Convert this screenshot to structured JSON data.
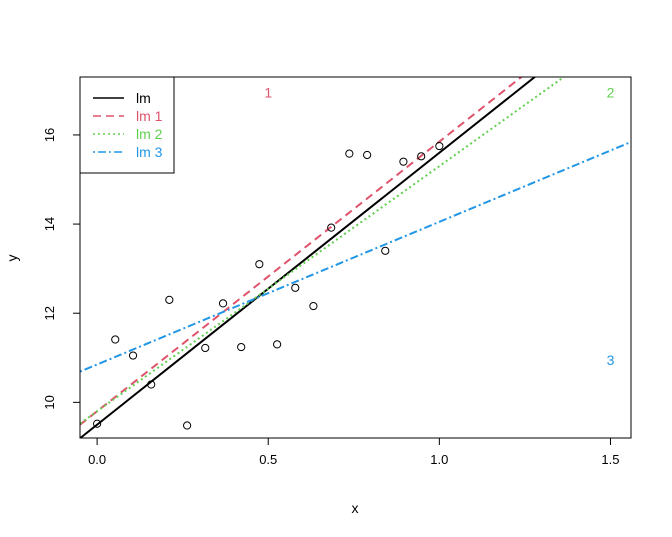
{
  "chart_data": {
    "type": "scatter",
    "title": "",
    "xlabel": "x",
    "ylabel": "y",
    "xlim": [
      -0.05,
      1.56
    ],
    "ylim": [
      9.2,
      17.3
    ],
    "x_ticks": [
      0.0,
      0.5,
      1.0,
      1.5
    ],
    "x_tick_labels": [
      "0.0",
      "0.5",
      "1.0",
      "1.5"
    ],
    "y_ticks": [
      10,
      12,
      14,
      16
    ],
    "y_tick_labels": [
      "10",
      "12",
      "14",
      "16"
    ],
    "grid": false,
    "legend_position": "top-left",
    "points": {
      "x": [
        0.0,
        0.053,
        0.105,
        0.158,
        0.211,
        0.263,
        0.316,
        0.368,
        0.421,
        0.474,
        0.526,
        0.579,
        0.632,
        0.684,
        0.737,
        0.789,
        0.842,
        0.895,
        0.947,
        1.0
      ],
      "y": [
        9.52,
        11.41,
        11.05,
        10.4,
        12.3,
        9.48,
        11.22,
        12.22,
        11.24,
        13.1,
        11.3,
        12.57,
        12.16,
        13.92,
        15.58,
        15.55,
        13.4,
        15.4,
        15.52,
        15.75
      ]
    },
    "lines": [
      {
        "name": "lm",
        "intercept": 9.5,
        "slope": 6.1,
        "color": "#000000",
        "dash": "solid"
      },
      {
        "name": "lm 1",
        "intercept": 9.8,
        "slope": 6.05,
        "color": "#DF536B",
        "dash": "dashed"
      },
      {
        "name": "lm 2",
        "intercept": 9.8,
        "slope": 5.5,
        "color": "#61D04F",
        "dash": "dotted"
      },
      {
        "name": "lm 3",
        "intercept": 10.85,
        "slope": 3.2,
        "color": "#2297E6",
        "dash": "dotdash"
      }
    ],
    "annotations": [
      {
        "label": "1",
        "x": 0.5,
        "y": 16.95,
        "color": "#DF536B"
      },
      {
        "label": "2",
        "x": 1.5,
        "y": 16.95,
        "color": "#61D04F"
      },
      {
        "label": "3",
        "x": 1.5,
        "y": 10.95,
        "color": "#2297E6"
      }
    ]
  }
}
